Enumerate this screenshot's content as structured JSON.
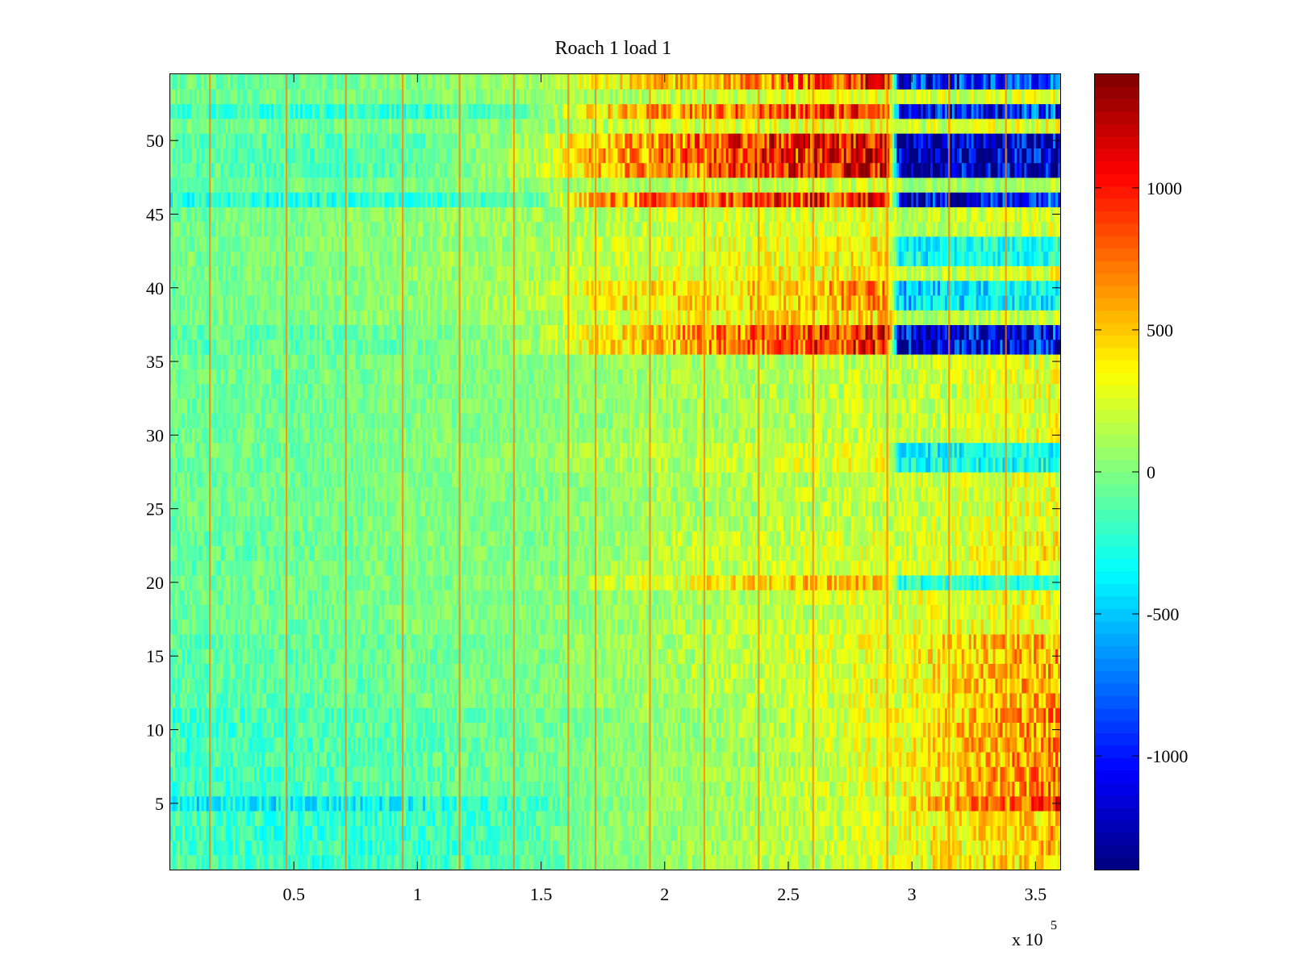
{
  "chart_data": {
    "type": "heatmap",
    "title": "Roach 1 load 1",
    "xlabel": "",
    "ylabel": "",
    "x_multiplier_label": "x 10",
    "x_multiplier_exponent": "5",
    "x_scale_factor": 100000,
    "xlim": [
      0,
      360000
    ],
    "ylim": [
      0.5,
      54.5
    ],
    "n_rows": 54,
    "x_ticks": [
      {
        "value": 50000,
        "label": "0.5"
      },
      {
        "value": 100000,
        "label": "1"
      },
      {
        "value": 150000,
        "label": "1.5"
      },
      {
        "value": 200000,
        "label": "2"
      },
      {
        "value": 250000,
        "label": "2.5"
      },
      {
        "value": 300000,
        "label": "3"
      },
      {
        "value": 350000,
        "label": "3.5"
      }
    ],
    "y_ticks": [
      {
        "value": 5,
        "label": "5"
      },
      {
        "value": 10,
        "label": "10"
      },
      {
        "value": 15,
        "label": "15"
      },
      {
        "value": 20,
        "label": "20"
      },
      {
        "value": 25,
        "label": "25"
      },
      {
        "value": 30,
        "label": "30"
      },
      {
        "value": 35,
        "label": "35"
      },
      {
        "value": 40,
        "label": "40"
      },
      {
        "value": 45,
        "label": "45"
      },
      {
        "value": 50,
        "label": "50"
      }
    ],
    "colorbar": {
      "colormap": "jet",
      "clim": [
        -1400,
        1400
      ],
      "ticks": [
        {
          "value": 1000,
          "label": "1000"
        },
        {
          "value": 500,
          "label": "500"
        },
        {
          "value": 0,
          "label": "0"
        },
        {
          "value": -500,
          "label": "-500"
        },
        {
          "value": -1000,
          "label": "-1000"
        }
      ]
    },
    "x_breakpoints": [
      0,
      50000,
      100000,
      150000,
      170000,
      200000,
      250000,
      290000,
      295000,
      330000,
      360000
    ],
    "row_bands": [
      {
        "rows": [
          1,
          4
        ],
        "profile": [
          -150,
          -200,
          -200,
          -100,
          0,
          50,
          150,
          250,
          300,
          400,
          550
        ]
      },
      {
        "rows": [
          5,
          5
        ],
        "profile": [
          -350,
          -350,
          -300,
          -150,
          0,
          50,
          150,
          300,
          350,
          700,
          900
        ]
      },
      {
        "rows": [
          6,
          11
        ],
        "profile": [
          -200,
          -150,
          -100,
          -50,
          0,
          50,
          150,
          300,
          300,
          550,
          700
        ]
      },
      {
        "rows": [
          12,
          16
        ],
        "profile": [
          -100,
          -100,
          -50,
          0,
          50,
          100,
          200,
          300,
          300,
          500,
          600
        ]
      },
      {
        "rows": [
          17,
          19
        ],
        "profile": [
          -50,
          -50,
          0,
          0,
          50,
          100,
          200,
          250,
          250,
          300,
          350
        ]
      },
      {
        "rows": [
          20,
          20
        ],
        "profile": [
          -50,
          -50,
          0,
          50,
          150,
          300,
          450,
          550,
          -250,
          -250,
          -200
        ]
      },
      {
        "rows": [
          21,
          23
        ],
        "profile": [
          -100,
          -50,
          0,
          0,
          50,
          150,
          200,
          250,
          200,
          300,
          400
        ]
      },
      {
        "rows": [
          24,
          27
        ],
        "profile": [
          -50,
          -50,
          0,
          0,
          50,
          100,
          150,
          200,
          200,
          250,
          300
        ]
      },
      {
        "rows": [
          28,
          29
        ],
        "profile": [
          -50,
          -50,
          0,
          50,
          100,
          150,
          250,
          300,
          -350,
          -300,
          -300
        ]
      },
      {
        "rows": [
          30,
          35
        ],
        "profile": [
          -50,
          -50,
          0,
          0,
          50,
          100,
          150,
          200,
          150,
          250,
          300
        ]
      },
      {
        "rows": [
          36,
          37
        ],
        "profile": [
          -100,
          -100,
          -50,
          100,
          350,
          550,
          800,
          1050,
          -1150,
          -1150,
          -1000
        ]
      },
      {
        "rows": [
          38,
          38
        ],
        "profile": [
          -50,
          0,
          50,
          100,
          200,
          300,
          400,
          450,
          100,
          150,
          200
        ]
      },
      {
        "rows": [
          39,
          40
        ],
        "profile": [
          -50,
          0,
          50,
          150,
          350,
          400,
          500,
          650,
          -500,
          -400,
          -350
        ]
      },
      {
        "rows": [
          41,
          41
        ],
        "profile": [
          -50,
          0,
          50,
          100,
          200,
          250,
          350,
          400,
          200,
          250,
          300
        ]
      },
      {
        "rows": [
          42,
          43
        ],
        "profile": [
          -50,
          0,
          50,
          100,
          200,
          250,
          300,
          400,
          -350,
          -300,
          -250
        ]
      },
      {
        "rows": [
          44,
          45
        ],
        "profile": [
          -50,
          0,
          50,
          100,
          150,
          200,
          250,
          300,
          100,
          200,
          250
        ]
      },
      {
        "rows": [
          46,
          46
        ],
        "profile": [
          -250,
          -250,
          -200,
          -100,
          600,
          750,
          900,
          1000,
          -1150,
          -1100,
          -700
        ]
      },
      {
        "rows": [
          47,
          47
        ],
        "profile": [
          -50,
          -50,
          0,
          50,
          100,
          150,
          200,
          250,
          100,
          100,
          150
        ]
      },
      {
        "rows": [
          48,
          50
        ],
        "profile": [
          -100,
          -150,
          -100,
          150,
          500,
          700,
          1000,
          1150,
          -1350,
          -1300,
          -1200
        ]
      },
      {
        "rows": [
          51,
          51
        ],
        "profile": [
          -50,
          -50,
          0,
          50,
          150,
          200,
          300,
          350,
          200,
          250,
          300
        ]
      },
      {
        "rows": [
          52,
          52
        ],
        "profile": [
          -150,
          -200,
          -200,
          -50,
          400,
          600,
          800,
          1000,
          -1100,
          -1000,
          -900
        ]
      },
      {
        "rows": [
          53,
          53
        ],
        "profile": [
          -50,
          -50,
          0,
          50,
          100,
          150,
          250,
          300,
          200,
          250,
          300
        ]
      },
      {
        "rows": [
          54,
          54
        ],
        "profile": [
          -50,
          -50,
          0,
          100,
          300,
          500,
          700,
          1100,
          -1000,
          -950,
          -900
        ]
      }
    ],
    "spike_columns_x": [
      16000,
      47000,
      71000,
      94000,
      117000,
      139000,
      161000,
      172000,
      194000,
      216000,
      238000,
      260000,
      290000,
      315000,
      338000
    ],
    "spike_value": 700
  }
}
